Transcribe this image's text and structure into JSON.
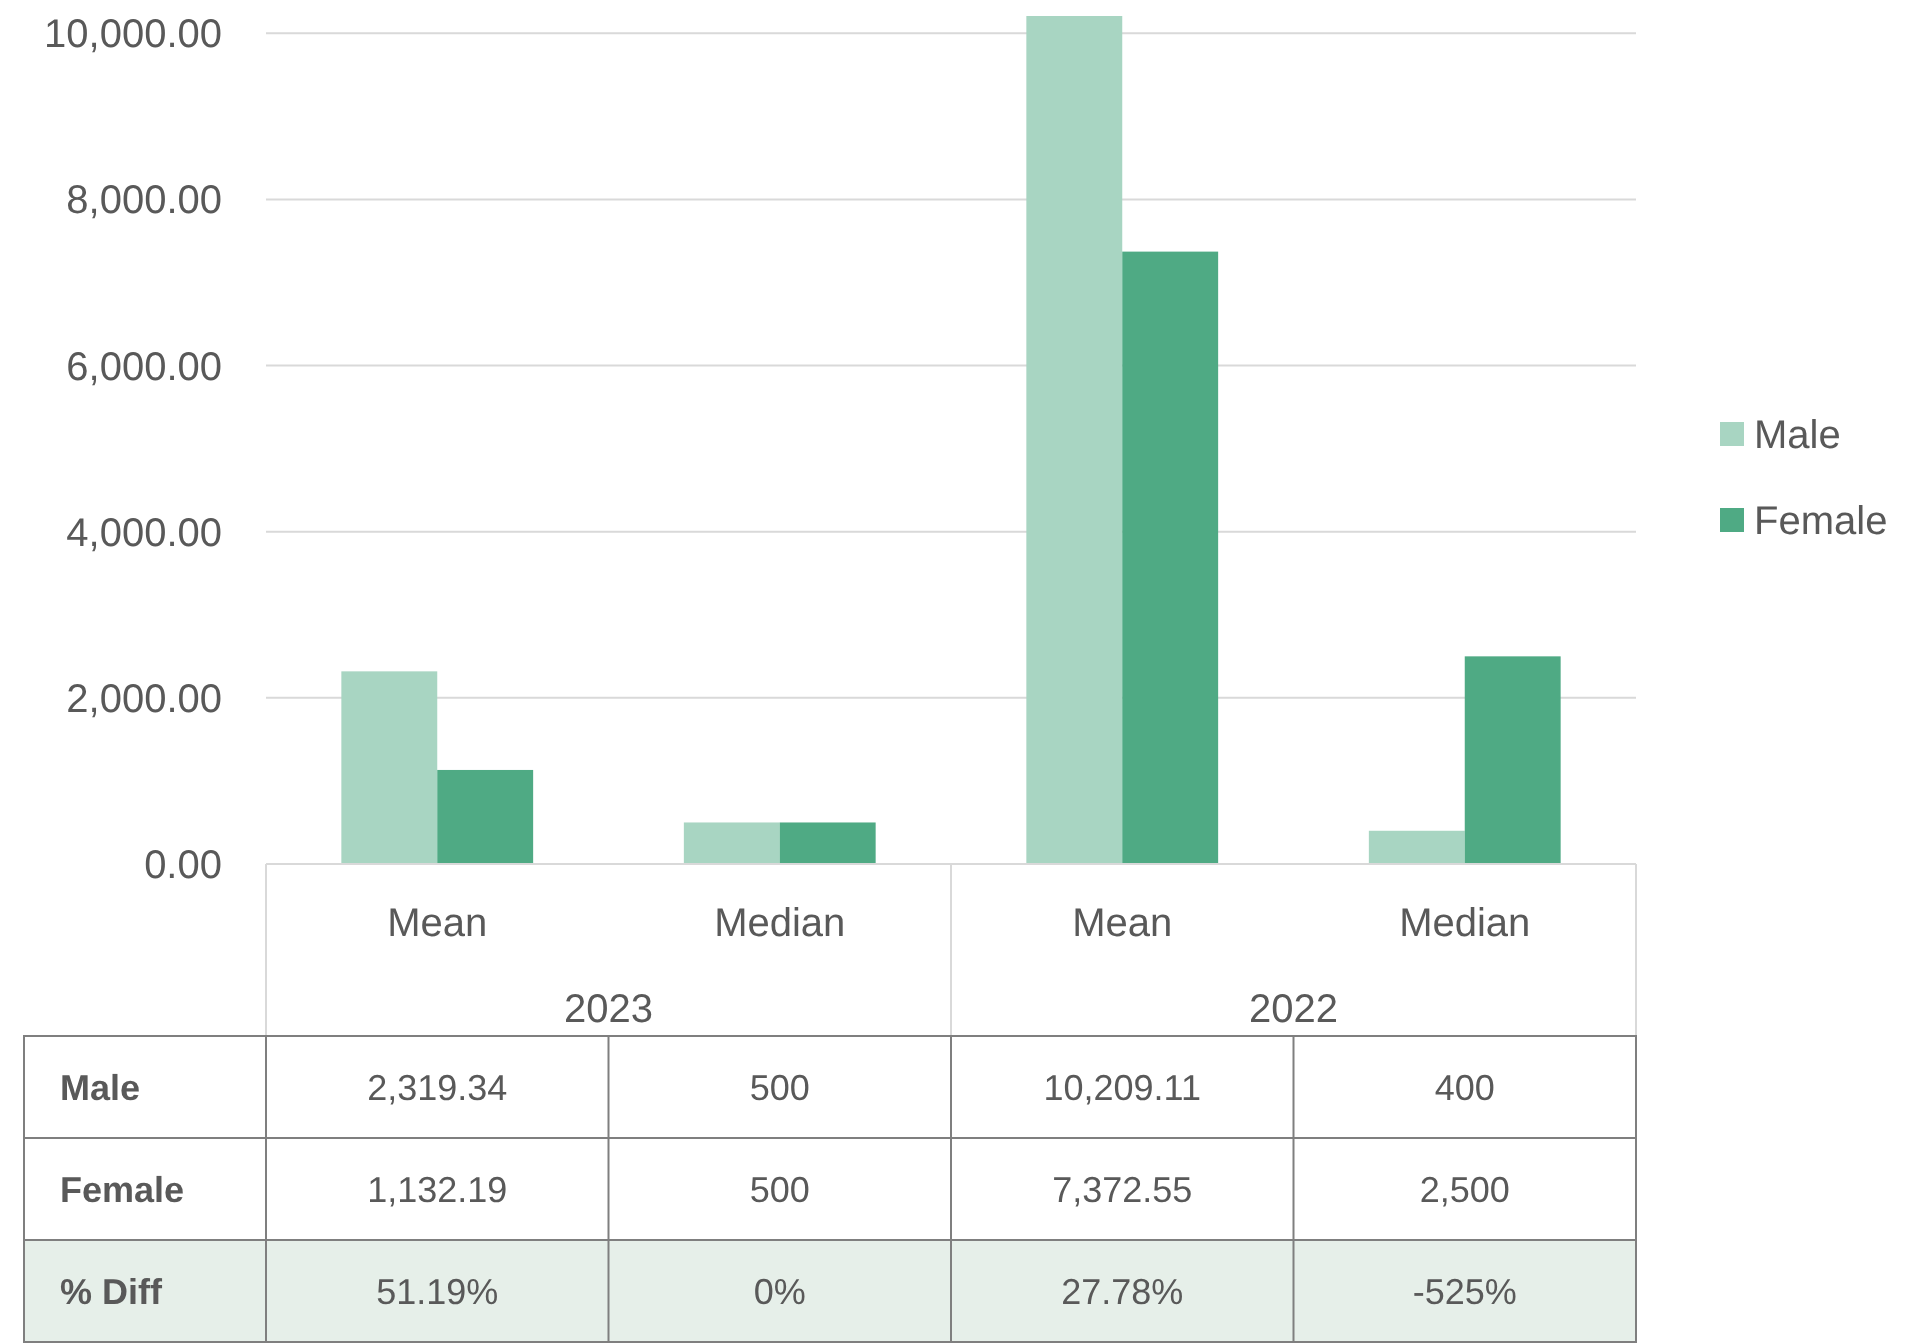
{
  "chart_data": {
    "type": "bar",
    "categories": [
      "Mean",
      "Median",
      "Mean",
      "Median"
    ],
    "series": [
      {
        "name": "Male",
        "color": "#a8d5c2",
        "values": [
          2319.34,
          500,
          10209.11,
          400
        ],
        "value_labels": [
          "2,319.34",
          "500",
          "10,209.11",
          "400"
        ]
      },
      {
        "name": "Female",
        "color": "#4faa84",
        "values": [
          1132.19,
          500,
          7372.55,
          2500
        ],
        "value_labels": [
          "1,132.19",
          "500",
          "7,372.55",
          "2,500"
        ]
      }
    ],
    "ylim": [
      0,
      10209.11
    ],
    "yticks": [
      {
        "value": 0,
        "label": "0.00"
      },
      {
        "value": 2000,
        "label": "2,000.00"
      },
      {
        "value": 4000,
        "label": "4,000.00"
      },
      {
        "value": 6000,
        "label": "6,000.00"
      },
      {
        "value": 8000,
        "label": "8,000.00"
      },
      {
        "value": 10000,
        "label": "10,000.00"
      }
    ],
    "grid": "y",
    "legend": "right",
    "annotations": [
      "2023",
      "2022",
      "% Diff",
      "51.19%",
      "0%",
      "27.78%",
      "-525%"
    ]
  }
}
